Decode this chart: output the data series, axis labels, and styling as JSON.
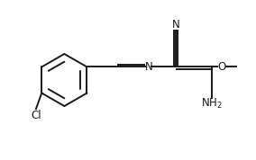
{
  "bg_color": "#ffffff",
  "line_color": "#1a1a1a",
  "line_width": 1.4,
  "font_size": 8.5,
  "figsize": [
    2.84,
    1.78
  ],
  "dpi": 100,
  "xlim": [
    0,
    10
  ],
  "ylim": [
    0,
    7
  ]
}
